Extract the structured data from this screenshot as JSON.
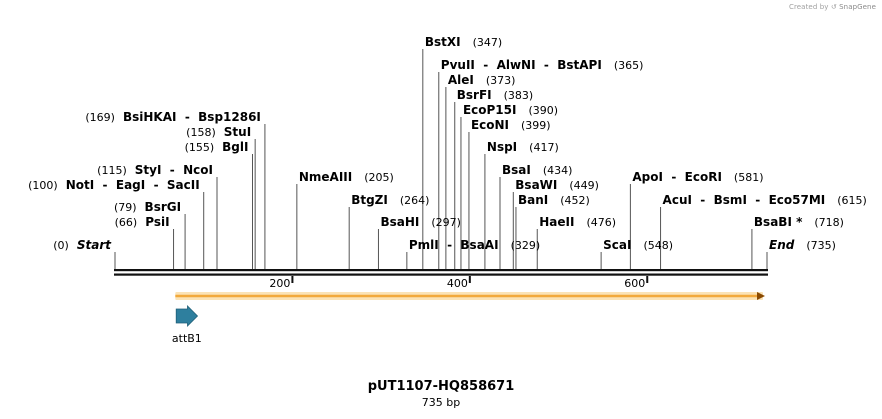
{
  "credit": {
    "prefix": "Created by",
    "brand": "SnapGene"
  },
  "plasmid": {
    "name": "pUT1107-HQ858671",
    "size_label": "735 bp",
    "length": 735
  },
  "ruler": {
    "ticks": [
      200,
      400,
      600
    ]
  },
  "sites": [
    {
      "label": "Start",
      "pos": 0,
      "pos_label": "(0)",
      "style": "italic",
      "side": "left"
    },
    {
      "label": "PsiI",
      "pos": 66,
      "pos_label": "(66)",
      "side": "left"
    },
    {
      "label": "BsrGI",
      "pos": 79,
      "pos_label": "(79)",
      "side": "left"
    },
    {
      "label": "NotI  -  EagI  -  SacII",
      "pos": 100,
      "pos_label": "(100)",
      "side": "left"
    },
    {
      "label": "StyI  -  NcoI",
      "pos": 115,
      "pos_label": "(115)",
      "side": "left"
    },
    {
      "label": "BglI",
      "pos": 155,
      "pos_label": "(155)",
      "side": "left"
    },
    {
      "label": "StuI",
      "pos": 158,
      "pos_label": "(158)",
      "side": "left"
    },
    {
      "label": "BsiHKAI  -  Bsp1286I",
      "pos": 169,
      "pos_label": "(169)",
      "side": "left"
    },
    {
      "label": "NmeAIII",
      "pos": 205,
      "pos_label": "(205)",
      "side": "right"
    },
    {
      "label": "BtgZI",
      "pos": 264,
      "pos_label": "(264)",
      "side": "right"
    },
    {
      "label": "BsaHI",
      "pos": 297,
      "pos_label": "(297)",
      "side": "right"
    },
    {
      "label": "PmlI  -  BsaAI",
      "pos": 329,
      "pos_label": "(329)",
      "side": "right"
    },
    {
      "label": "BstXI",
      "pos": 347,
      "pos_label": "(347)",
      "side": "right"
    },
    {
      "label": "PvuII  -  AlwNI  -  BstAPI",
      "pos": 365,
      "pos_label": "(365)",
      "side": "right"
    },
    {
      "label": "AleI",
      "pos": 373,
      "pos_label": "(373)",
      "side": "right"
    },
    {
      "label": "BsrFI",
      "pos": 383,
      "pos_label": "(383)",
      "side": "right"
    },
    {
      "label": "EcoP15I",
      "pos": 390,
      "pos_label": "(390)",
      "side": "right"
    },
    {
      "label": "EcoNI",
      "pos": 399,
      "pos_label": "(399)",
      "side": "right"
    },
    {
      "label": "NspI",
      "pos": 417,
      "pos_label": "(417)",
      "side": "right"
    },
    {
      "label": "BsaI",
      "pos": 434,
      "pos_label": "(434)",
      "side": "right"
    },
    {
      "label": "BsaWI",
      "pos": 449,
      "pos_label": "(449)",
      "side": "right"
    },
    {
      "label": "BanI",
      "pos": 452,
      "pos_label": "(452)",
      "side": "right"
    },
    {
      "label": "HaeII",
      "pos": 476,
      "pos_label": "(476)",
      "side": "right"
    },
    {
      "label": "ScaI",
      "pos": 548,
      "pos_label": "(548)",
      "side": "right"
    },
    {
      "label": "ApoI  -  EcoRI",
      "pos": 581,
      "pos_label": "(581)",
      "side": "right"
    },
    {
      "label": "AcuI  -  BsmI  -  Eco57MI",
      "pos": 615,
      "pos_label": "(615)",
      "side": "right"
    },
    {
      "label": "BsaBI *",
      "pos": 718,
      "pos_label": "(718)",
      "side": "right"
    },
    {
      "label": "End",
      "pos": 735,
      "pos_label": "(735)",
      "style": "italic",
      "side": "right"
    }
  ],
  "features": [
    {
      "type": "orf-bar",
      "name": "",
      "start": 68,
      "end": 735,
      "color": "#f2a93b"
    },
    {
      "type": "arrow",
      "name": "attB1",
      "start": 69,
      "end": 93,
      "color": "#2e7f9e"
    }
  ]
}
